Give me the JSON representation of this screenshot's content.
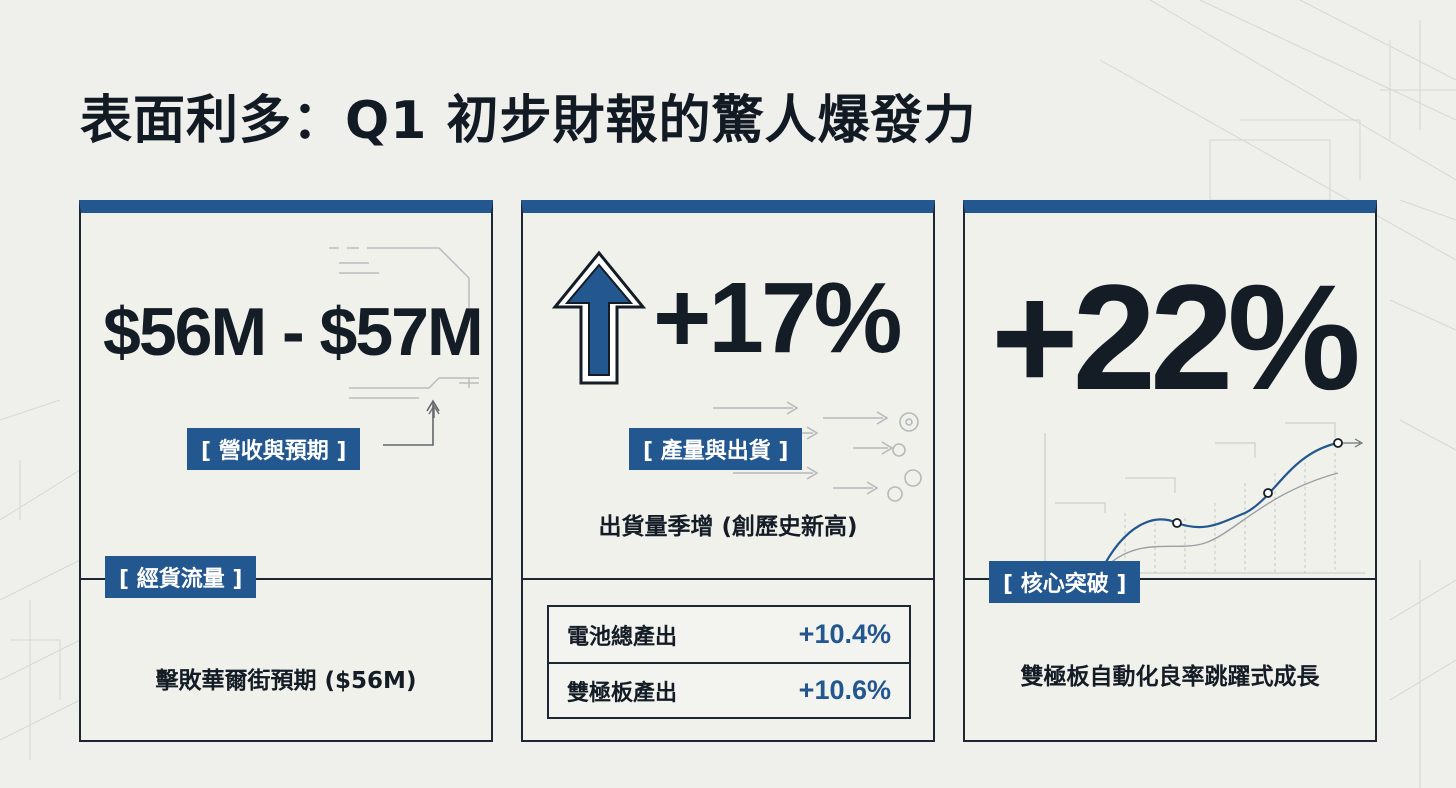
{
  "title": "表面利多：Q1 初步財報的驚人爆發力",
  "colors": {
    "accent": "#23578f",
    "ink": "#141c26",
    "background": "#efefeb"
  },
  "cards": [
    {
      "big_value": "$56M - $57M",
      "tag_top": "[ 營收與預期 ]",
      "tag_bottom": "[ 經貨流量 ]",
      "caption": "擊敗華爾街預期 ($56M)"
    },
    {
      "icon": "up-arrow-icon",
      "big_value": "+17%",
      "tag_top": "[ 產量與出貨 ]",
      "caption": "出貨量季增 (創歷史新高)",
      "table": [
        {
          "label": "電池總產出",
          "value": "+10.4%"
        },
        {
          "label": "雙極板產出",
          "value": "+10.6%"
        }
      ]
    },
    {
      "big_value": "+22%",
      "tag_bottom": "[ 核心突破 ]",
      "caption": "雙極板自動化良率跳躍式成長"
    }
  ]
}
